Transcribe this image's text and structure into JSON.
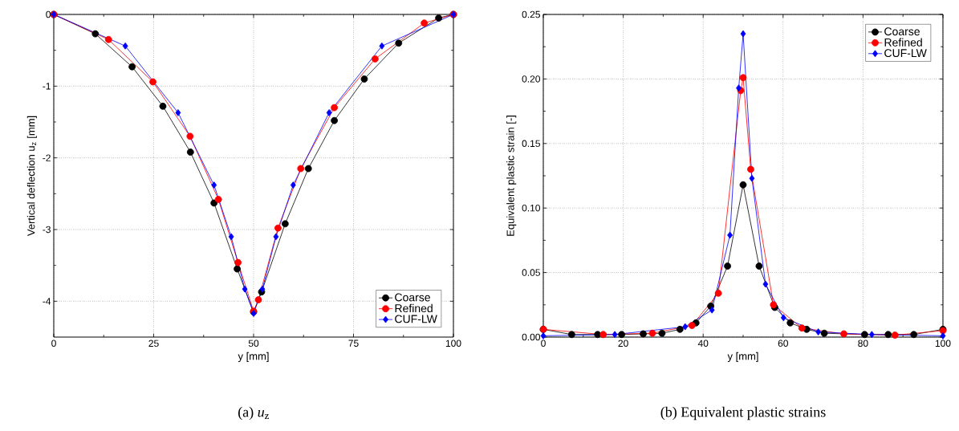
{
  "chart_data": [
    {
      "type": "line",
      "xlabel": "y [mm]",
      "ylabel": "Vertical deflection u$_{z}$ [mm]",
      "annotations": [
        "(a) *u*$_{z}$"
      ],
      "xlim": [
        0,
        100
      ],
      "ylim": [
        -4.5,
        0
      ],
      "xticks": [
        0,
        25,
        50,
        75,
        100
      ],
      "yticks": [
        -4,
        -3,
        -2,
        -1,
        0
      ],
      "grid": true,
      "legend": "bottom right",
      "line_style": "solid",
      "series": [
        {
          "name": "Coarse",
          "color": "#000000",
          "marker": "circle",
          "x": [
            0,
            10.4,
            19.6,
            27.3,
            34.2,
            40.1,
            45.9,
            50,
            52,
            57.9,
            63.7,
            70.2,
            77.7,
            86.3,
            96.3,
            100
          ],
          "values": [
            0,
            -0.27,
            -0.73,
            -1.28,
            -1.92,
            -2.63,
            -3.55,
            -4.15,
            -3.87,
            -2.92,
            -2.15,
            -1.48,
            -0.9,
            -0.4,
            -0.05,
            0
          ]
        },
        {
          "name": "Refined",
          "color": "#ff0000",
          "marker": "circle",
          "x": [
            0,
            13.7,
            24.8,
            34.1,
            41.2,
            46.1,
            50,
            51.2,
            56.1,
            61.8,
            70.2,
            80.4,
            92.7,
            100
          ],
          "values": [
            0,
            -0.35,
            -0.94,
            -1.7,
            -2.58,
            -3.46,
            -4.14,
            -3.98,
            -2.98,
            -2.15,
            -1.3,
            -0.62,
            -0.12,
            0
          ]
        },
        {
          "name": "CUF-LW",
          "color": "#0000ff",
          "marker": "diamond",
          "x": [
            0,
            17.9,
            31.1,
            40.1,
            44.4,
            47.8,
            50,
            52.2,
            55.6,
            59.9,
            68.9,
            82.1,
            100
          ],
          "values": [
            0,
            -0.44,
            -1.37,
            -2.38,
            -3.1,
            -3.83,
            -4.17,
            -3.83,
            -3.1,
            -2.38,
            -1.37,
            -0.44,
            0
          ]
        }
      ]
    },
    {
      "type": "line",
      "xlabel": "y [mm]",
      "ylabel": "Equivalent plastic strain [-]",
      "annotations": [
        "(b) Equivalent plastic strains"
      ],
      "xlim": [
        0,
        100
      ],
      "ylim": [
        0,
        0.25
      ],
      "xticks": [
        0,
        20,
        40,
        60,
        80,
        100
      ],
      "yticks": [
        {
          "value": 0,
          "label": "0.00"
        },
        {
          "value": 0.05,
          "label": "0.05"
        },
        {
          "value": 0.1,
          "label": "0.10"
        },
        {
          "value": 0.15,
          "label": "0.15"
        },
        {
          "value": 0.2,
          "label": "0.20"
        },
        {
          "value": 0.25,
          "label": "0.25"
        }
      ],
      "grid": true,
      "legend": "top right",
      "line_style": "solid",
      "series": [
        {
          "name": "Coarse",
          "color": "#000000",
          "marker": "circle",
          "x": [
            0,
            7.1,
            13.6,
            19.6,
            25,
            29.7,
            34.2,
            38.2,
            41.9,
            46.1,
            50,
            54,
            57.9,
            61.8,
            65.9,
            70.3,
            80.4,
            86.3,
            92.7,
            100
          ],
          "values": [
            0.006,
            0.002,
            0.002,
            0.002,
            0.0025,
            0.003,
            0.006,
            0.011,
            0.024,
            0.055,
            0.118,
            0.055,
            0.023,
            0.011,
            0.006,
            0.003,
            0.002,
            0.002,
            0.002,
            0.006
          ]
        },
        {
          "name": "Refined",
          "color": "#ff0000",
          "marker": "circle",
          "x": [
            0,
            15,
            27.3,
            37.2,
            43.8,
            49.4,
            50,
            51.9,
            57.6,
            64.7,
            75.2,
            88,
            100
          ],
          "values": [
            0.006,
            0.002,
            0.003,
            0.009,
            0.034,
            0.191,
            0.201,
            0.13,
            0.025,
            0.007,
            0.0025,
            0.0015,
            0.005
          ]
        },
        {
          "name": "CUF-LW",
          "color": "#0000ff",
          "marker": "diamond",
          "x": [
            0,
            17.9,
            35.5,
            42.2,
            46.7,
            48.9,
            50,
            52.2,
            55.6,
            60.1,
            68.8,
            82.2,
            100
          ],
          "values": [
            0.001,
            0.002,
            0.008,
            0.021,
            0.079,
            0.193,
            0.235,
            0.123,
            0.041,
            0.015,
            0.004,
            0.002,
            0.001
          ]
        }
      ]
    }
  ]
}
